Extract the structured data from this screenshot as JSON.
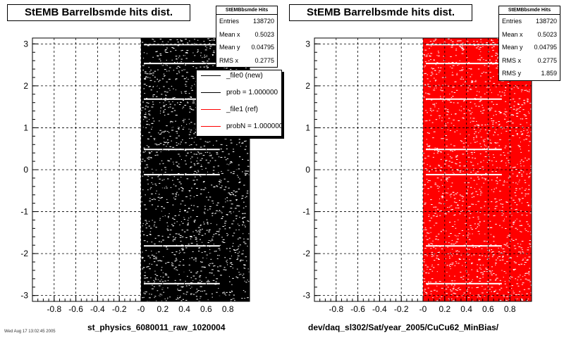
{
  "panels": [
    {
      "title": "StEMB Barrelbsmde hits dist.",
      "color": "#000000",
      "footer": "st_physics_6080011_raw_1020004",
      "stats": {
        "header": "StEMBbsmde Hits",
        "rows": [
          {
            "label": "Entries",
            "value": "138720"
          },
          {
            "label": "Mean x",
            "value": "0.5023"
          },
          {
            "label": "Mean y",
            "value": "0.04795"
          },
          {
            "label": "RMS x",
            "value": "0.2775"
          }
        ]
      },
      "legend": [
        {
          "label": "_file0 (new)",
          "color": "#000000"
        },
        {
          "label": "prob = 1.000000",
          "color": "#000000"
        },
        {
          "label": "_file1 (ref)",
          "color": "#ff0000"
        },
        {
          "label": "probN = 1.000000",
          "color": "#ff0000"
        }
      ]
    },
    {
      "title": "StEMB Barrelbsmde hits dist.",
      "color": "#ff0000",
      "footer": "dev/daq_sl302/Sat/year_2005/CuCu62_MinBias/",
      "stats": {
        "header": "StEMBbsmde Hits",
        "rows": [
          {
            "label": "Entries",
            "value": "138720"
          },
          {
            "label": "Mean x",
            "value": "0.5023"
          },
          {
            "label": "Mean y",
            "value": "0.04795"
          },
          {
            "label": "RMS x",
            "value": "0.2775"
          },
          {
            "label": "RMS y",
            "value": "1.859"
          }
        ]
      }
    }
  ],
  "bottom_note": "Wed Aug 17 13:02:45 2005",
  "chart_data": [
    {
      "type": "heatmap",
      "title": "StEMB Barrelbsmde hits dist.",
      "xlabel": "",
      "ylabel": "",
      "xlim": [
        -1,
        1
      ],
      "ylim": [
        -3.14,
        3.14
      ],
      "xticks": [
        "-0.8",
        "-0.6",
        "-0.4",
        "-0.2",
        "-0",
        "0.2",
        "0.4",
        "0.6",
        "0.8"
      ],
      "yticks": [
        "3",
        "2",
        "1",
        "0",
        "-1",
        "-2",
        "-3"
      ],
      "filled_x_range": [
        0,
        1
      ],
      "grid": true,
      "series_color": "#000000",
      "legend_placement": "top-right"
    },
    {
      "type": "heatmap",
      "title": "StEMB Barrelbsmde hits dist.",
      "xlabel": "",
      "ylabel": "",
      "xlim": [
        -1,
        1
      ],
      "ylim": [
        -3.14,
        3.14
      ],
      "xticks": [
        "-0.8",
        "-0.6",
        "-0.4",
        "-0.2",
        "-0",
        "0.2",
        "0.4",
        "0.6",
        "0.8"
      ],
      "yticks": [
        "3",
        "2",
        "1",
        "0",
        "-1",
        "-2",
        "-3"
      ],
      "filled_x_range": [
        0,
        1
      ],
      "grid": true,
      "series_color": "#ff0000"
    }
  ]
}
